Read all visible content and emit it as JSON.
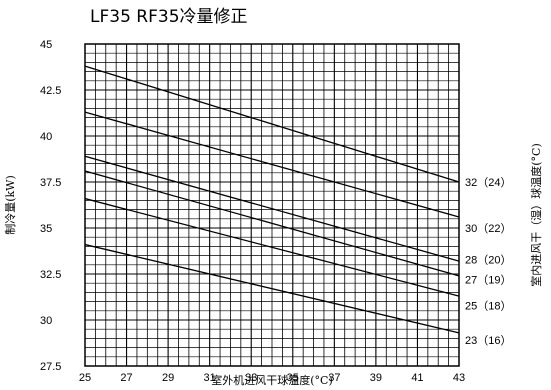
{
  "chart_data": {
    "type": "line",
    "title": "LF35 RF35冷量修正",
    "xlabel": "室外机进风干球温度(°C)",
    "ylabel": "制冷量(kW)",
    "y2label": "室内进风干（湿）球温度(°C)",
    "xlim": [
      25,
      43
    ],
    "ylim": [
      27.5,
      45
    ],
    "xticks": [
      "25",
      "27",
      "29",
      "31",
      "33",
      "35",
      "37",
      "39",
      "41",
      "43"
    ],
    "yticks": [
      "27.5",
      "30",
      "32.5",
      "35",
      "37.5",
      "40",
      "42.5",
      "45"
    ],
    "grid": true,
    "series": [
      {
        "name": "32（24）",
        "x": [
          25,
          43
        ],
        "y": [
          43.8,
          37.5
        ]
      },
      {
        "name": "30（22）",
        "x": [
          25,
          43
        ],
        "y": [
          41.3,
          35.6
        ]
      },
      {
        "name": "28（20）",
        "x": [
          25,
          43
        ],
        "y": [
          38.9,
          33.2
        ]
      },
      {
        "name": "27（19）",
        "x": [
          25,
          43
        ],
        "y": [
          38.1,
          32.4
        ]
      },
      {
        "name": "25（18）",
        "x": [
          25,
          43
        ],
        "y": [
          36.6,
          31.3
        ]
      },
      {
        "name": "23（16）",
        "x": [
          25,
          43
        ],
        "y": [
          34.1,
          29.3
        ]
      }
    ]
  }
}
